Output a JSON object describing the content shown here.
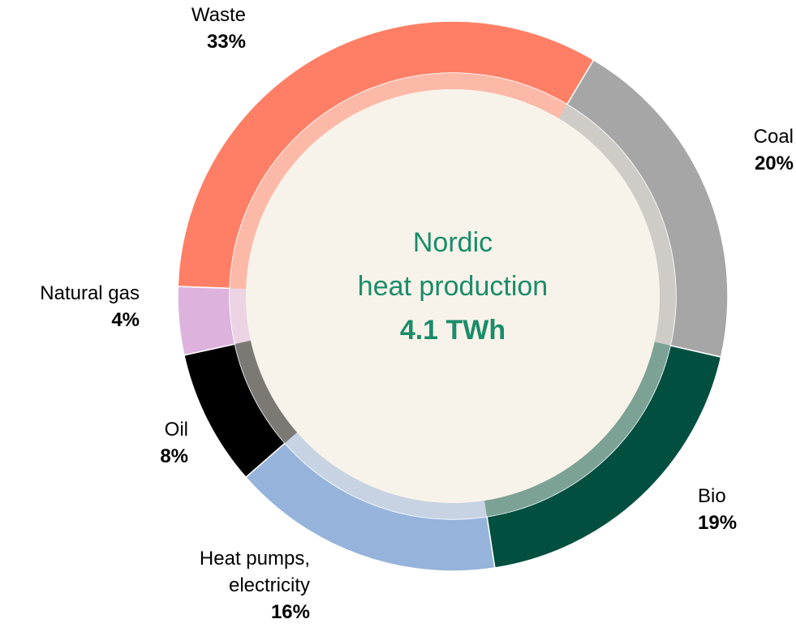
{
  "chart_data": {
    "type": "donut",
    "categories": [
      "Waste",
      "Coal",
      "Bio",
      "Heat pumps, electricity",
      "Oil",
      "Natural gas"
    ],
    "values": [
      33,
      20,
      19,
      16,
      8,
      4
    ],
    "value_labels": [
      "33%",
      "20%",
      "19%",
      "16%",
      "8%",
      "4%"
    ],
    "colors": [
      "#ff7f66",
      "#a6a6a6",
      "#004f3f",
      "#95b3db",
      "#000000",
      "#ddb3dd"
    ],
    "center_title": [
      "Nordic",
      "heat production"
    ],
    "center_value": "4.1 TWh"
  }
}
